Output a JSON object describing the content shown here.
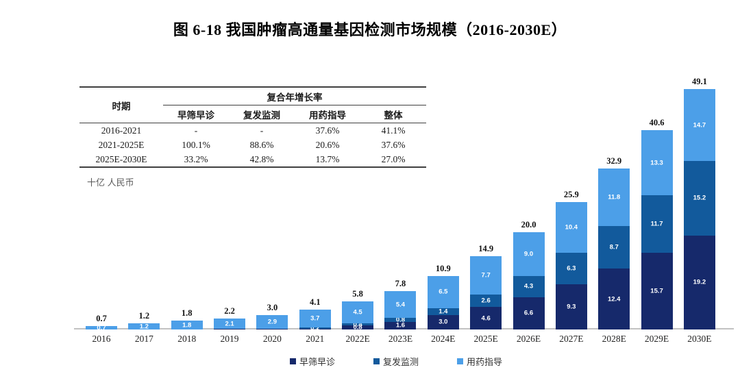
{
  "page": {
    "title": "图 6-18 我国肿瘤高通量基因检测市场规模（2016-2030E）"
  },
  "unit_label": "十亿 人民币",
  "table": {
    "period_header": "时期",
    "group_header": "复合年增长率",
    "sub_headers": [
      "早筛早诊",
      "复发监测",
      "用药指导",
      "整体"
    ],
    "rows": [
      [
        "2016-2021",
        "-",
        "-",
        "37.6%",
        "41.1%"
      ],
      [
        "2021-2025E",
        "100.1%",
        "88.6%",
        "20.6%",
        "37.6%"
      ],
      [
        "2025E-2030E",
        "33.2%",
        "42.8%",
        "13.7%",
        "27.0%"
      ]
    ]
  },
  "chart_data": {
    "type": "bar",
    "stacked": true,
    "title": "图 6-18 我国肿瘤高通量基因检测市场规模（2016-2030E）",
    "ylabel": "十亿 人民币",
    "ylim": [
      0,
      50
    ],
    "grid": false,
    "legend_position": "bottom",
    "categories": [
      "2016",
      "2017",
      "2018",
      "2019",
      "2020",
      "2021",
      "2022E",
      "2023E",
      "2024E",
      "2025E",
      "2026E",
      "2027E",
      "2028E",
      "2029E",
      "2030E"
    ],
    "series": [
      {
        "name": "早筛早诊",
        "color": "#16296B",
        "values": [
          0,
          0,
          0,
          0.1,
          0.1,
          0.2,
          0.8,
          1.6,
          3.0,
          4.6,
          6.6,
          9.3,
          12.4,
          15.7,
          19.2
        ]
      },
      {
        "name": "复发监测",
        "color": "#125A9C",
        "values": [
          0,
          0,
          0,
          0,
          0,
          0.2,
          0.4,
          0.8,
          1.4,
          2.6,
          4.3,
          6.3,
          8.7,
          11.7,
          15.2
        ]
      },
      {
        "name": "用药指导",
        "color": "#4C9FE8",
        "values": [
          0.7,
          1.2,
          1.8,
          2.1,
          2.9,
          3.7,
          4.5,
          5.4,
          6.5,
          7.7,
          9.0,
          10.4,
          11.8,
          13.3,
          14.7
        ]
      }
    ],
    "totals": [
      "0.7",
      "1.2",
      "1.8",
      "2.2",
      "3.0",
      "4.1",
      "5.8",
      "7.8",
      "10.9",
      "14.9",
      "20.0",
      "25.9",
      "32.9",
      "40.6",
      "49.1"
    ]
  },
  "colors": {
    "axis_line": "#c2c2c2",
    "unit_text": "#595959"
  }
}
